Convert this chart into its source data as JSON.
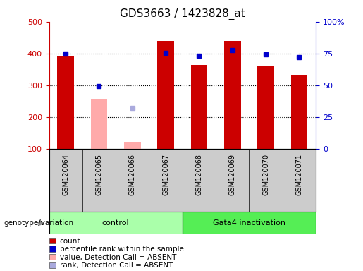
{
  "title": "GDS3663 / 1423828_at",
  "samples": [
    "GSM120064",
    "GSM120065",
    "GSM120066",
    "GSM120067",
    "GSM120068",
    "GSM120069",
    "GSM120070",
    "GSM120071"
  ],
  "red_bars": [
    390,
    null,
    null,
    440,
    365,
    440,
    362,
    333
  ],
  "pink_bars": [
    null,
    257,
    123,
    null,
    null,
    null,
    null,
    null
  ],
  "blue_squares": [
    400,
    298,
    null,
    402,
    392,
    410,
    397,
    388
  ],
  "lavender_squares": [
    null,
    null,
    230,
    null,
    null,
    null,
    null,
    null
  ],
  "groups": [
    {
      "label": "control",
      "start": 0,
      "end": 3
    },
    {
      "label": "Gata4 inactivation",
      "start": 4,
      "end": 7
    }
  ],
  "ylim_left": [
    100,
    500
  ],
  "ylim_right": [
    0,
    100
  ],
  "yticks_left": [
    100,
    200,
    300,
    400,
    500
  ],
  "yticks_right": [
    0,
    25,
    50,
    75,
    100
  ],
  "ytick_labels_right": [
    "0",
    "25",
    "50",
    "75",
    "100%"
  ],
  "red_color": "#cc0000",
  "pink_color": "#ffaaaa",
  "blue_color": "#0000cc",
  "lavender_color": "#aaaadd",
  "group_color1": "#aaffaa",
  "group_color2": "#55ee55",
  "background_color": "#cccccc",
  "plot_bg": "#ffffff",
  "legend_items": [
    {
      "color": "#cc0000",
      "label": "count"
    },
    {
      "color": "#0000cc",
      "label": "percentile rank within the sample"
    },
    {
      "color": "#ffaaaa",
      "label": "value, Detection Call = ABSENT"
    },
    {
      "color": "#aaaadd",
      "label": "rank, Detection Call = ABSENT"
    }
  ]
}
